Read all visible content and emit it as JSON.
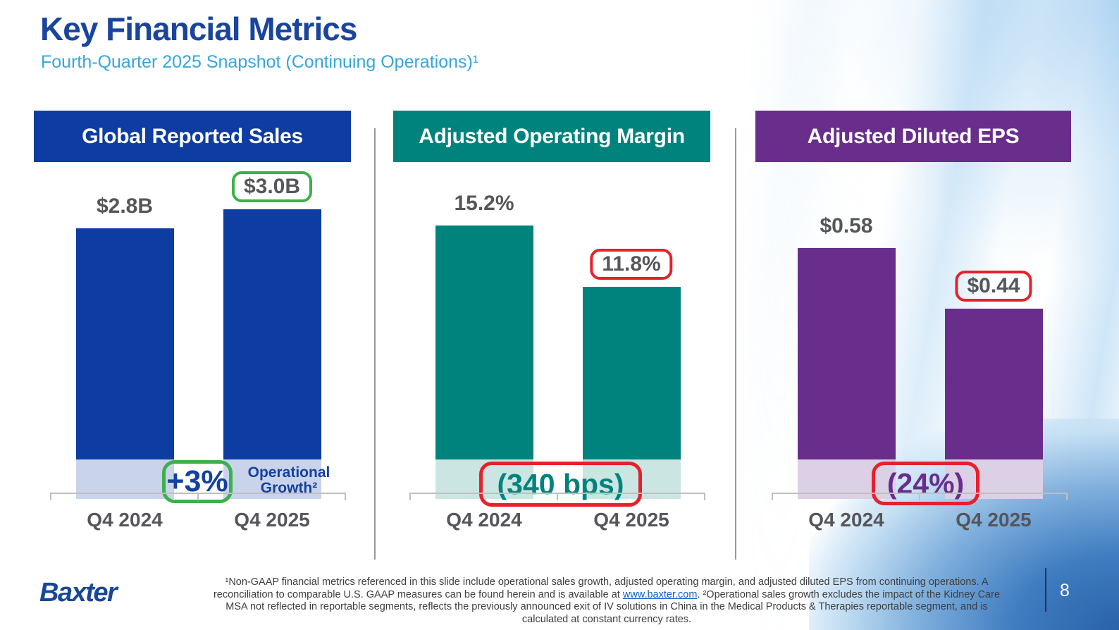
{
  "slide": {
    "title": "Key Financial Metrics",
    "subtitle": "Fourth-Quarter 2025 Snapshot (Continuing Operations)¹",
    "logo": "Baxter",
    "page_number": "8",
    "footnote": {
      "before_link": "¹Non-GAAP financial metrics referenced in this slide include operational sales growth, adjusted operating margin, and adjusted diluted EPS from continuing operations. A reconciliation to comparable U.S. GAAP measures can be found herein and is available at ",
      "link_text": "www.baxter.com",
      "after_link": ". ²Operational sales growth excludes the impact of the Kidney Care MSA not reflected in reportable segments, reflects the previously announced exit of IV solutions in China in the Medical Products & Therapies reportable segment, and is calculated at constant currency rates."
    },
    "colors": {
      "title_color": "#1A459E",
      "subtitle_color": "#35A6DC",
      "label_color": "#55565A",
      "footnote_color": "#3D3D3D",
      "link_color": "#0B5FC4"
    }
  },
  "chart_data": [
    {
      "type": "bar",
      "title": "Global Reported Sales",
      "categories": [
        "Q4 2024",
        "Q4 2025"
      ],
      "values": [
        2.8,
        3.0
      ],
      "value_labels": [
        "$2.8B",
        "$3.0B"
      ],
      "ylim": [
        0,
        3.0
      ],
      "highlight": {
        "index": 1,
        "box_color": "#3CB04A"
      },
      "callout": "+3%",
      "callout_note": "Operational Growth²",
      "colors": {
        "bar": "#0D3CA2",
        "band": "#C9D4EB",
        "callout_text": "#14409F",
        "callout_box": "#3CB04A"
      }
    },
    {
      "type": "bar",
      "title": "Adjusted Operating Margin",
      "categories": [
        "Q4 2024",
        "Q4 2025"
      ],
      "values": [
        15.2,
        11.8
      ],
      "value_labels": [
        "15.2%",
        "11.8%"
      ],
      "ylim": [
        0,
        15.2
      ],
      "highlight": {
        "index": 1,
        "box_color": "#E8202A"
      },
      "callout": "(340 bps)",
      "colors": {
        "bar": "#00837D",
        "band": "#CBE5E3",
        "callout_text": "#00837D",
        "callout_box": "#E8202A"
      }
    },
    {
      "type": "bar",
      "title": "Adjusted Diluted EPS",
      "categories": [
        "Q4 2024",
        "Q4 2025"
      ],
      "values": [
        0.58,
        0.44
      ],
      "value_labels": [
        "$0.58",
        "$0.44"
      ],
      "ylim": [
        0,
        0.58
      ],
      "highlight": {
        "index": 1,
        "box_color": "#E8202A"
      },
      "callout": "(24%)",
      "colors": {
        "bar": "#692D8C",
        "band": "#DBD0E5",
        "callout_text": "#692D8C",
        "callout_box": "#E8202A"
      }
    }
  ]
}
